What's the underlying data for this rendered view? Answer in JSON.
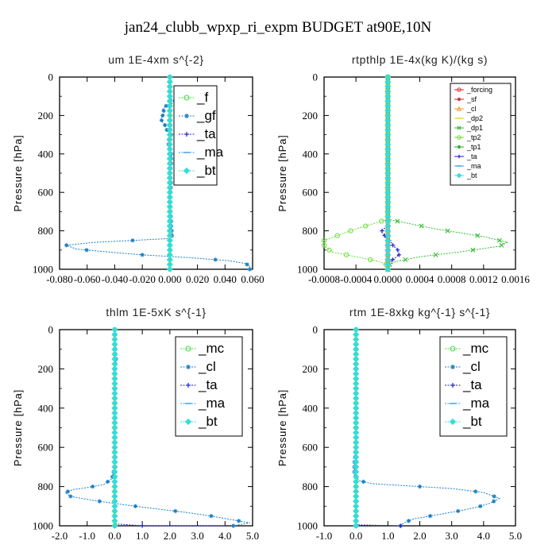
{
  "figure_title": "jan24_clubb_wpxp_ri_expm  BUDGET at90E,10N",
  "chart_data": [
    {
      "type": "line",
      "title": "um   1E-4xm s^{-2}",
      "ylabel": "Pressure [hPa]",
      "ylim": [
        1000,
        0
      ],
      "xlim": [
        -0.08,
        0.06
      ],
      "xticks": [
        "-0.080",
        "-0.060",
        "-0.040",
        "-0.020",
        "0.000",
        "0.020",
        "0.040",
        "0.060"
      ],
      "xtick_values": [
        -0.08,
        -0.06,
        -0.04,
        -0.02,
        0.0,
        0.02,
        0.04,
        0.06
      ],
      "yticks": [
        "0",
        "200",
        "400",
        "600",
        "800",
        "1000"
      ],
      "legend_style": "large",
      "series": [
        {
          "name": "_f",
          "color": "#44dd44",
          "marker": "circle",
          "points": [
            [
              0.0,
              0
            ],
            [
              0.0,
              1000
            ]
          ]
        },
        {
          "name": "_gf",
          "color": "#1a7fc4",
          "marker": "star",
          "points": [
            [
              0.0,
              0
            ],
            [
              0.0,
              95
            ],
            [
              0.0,
              110
            ],
            [
              0.005,
              130
            ],
            [
              -0.002,
              145
            ],
            [
              -0.005,
              165
            ],
            [
              -0.004,
              185
            ],
            [
              -0.006,
              210
            ],
            [
              -0.006,
              230
            ],
            [
              -0.003,
              255
            ],
            [
              -0.002,
              280
            ],
            [
              0.001,
              300
            ],
            [
              -0.001,
              330
            ],
            [
              -0.001,
              360
            ],
            [
              0.001,
              400
            ],
            [
              0.001,
              450
            ],
            [
              0.0,
              500
            ],
            [
              0.001,
              560
            ],
            [
              0.0,
              620
            ],
            [
              0.0,
              680
            ],
            [
              0.001,
              740
            ],
            [
              0.001,
              790
            ],
            [
              0.002,
              820
            ],
            [
              0.0,
              840
            ],
            [
              -0.027,
              850
            ],
            [
              -0.055,
              860
            ],
            [
              -0.075,
              875
            ],
            [
              -0.068,
              895
            ],
            [
              -0.045,
              910
            ],
            [
              -0.02,
              925
            ],
            [
              0.015,
              940
            ],
            [
              0.042,
              955
            ],
            [
              0.055,
              970
            ],
            [
              0.058,
              985
            ],
            [
              0.058,
              1000
            ]
          ]
        },
        {
          "name": "_ta",
          "color": "#2222cc",
          "marker": "plus",
          "points": [
            [
              0.0,
              0
            ],
            [
              0.0,
              1000
            ]
          ]
        },
        {
          "name": "_ma",
          "color": "#3399ee",
          "marker": "dash",
          "points": [
            [
              0.0,
              0
            ],
            [
              0.0,
              1000
            ]
          ]
        },
        {
          "name": "_bt",
          "color": "#33dddd",
          "marker": "diamond",
          "points": [
            [
              0.0,
              0
            ],
            [
              0.0,
              1000
            ]
          ]
        }
      ]
    },
    {
      "type": "line",
      "title": "rtpthlp   1E-4x(kg K)/(kg s)",
      "ylabel": "Pressure [hPa]",
      "ylim": [
        1000,
        0
      ],
      "xlim": [
        -0.0008,
        0.0016
      ],
      "xticks": [
        "-0.0008",
        "-0.0004",
        "0.0000",
        "0.0004",
        "0.0008",
        "0.0012",
        "0.0016"
      ],
      "xtick_values": [
        -0.0008,
        -0.0004,
        0.0,
        0.0004,
        0.0008,
        0.0012,
        0.0016
      ],
      "yticks": [
        "0",
        "200",
        "400",
        "600",
        "800",
        "1000"
      ],
      "legend_style": "small",
      "series": [
        {
          "name": "_forcing",
          "color": "#dd2222",
          "marker": "circle",
          "points": [
            [
              0.0,
              0
            ],
            [
              0.0,
              1000
            ]
          ]
        },
        {
          "name": "_sf",
          "color": "#cc2222",
          "marker": "star",
          "points": [
            [
              0.0,
              0
            ],
            [
              0.0,
              1000
            ]
          ]
        },
        {
          "name": "_cl",
          "color": "#ee9922",
          "marker": "tri",
          "points": [
            [
              0.0,
              0
            ],
            [
              0.0,
              1000
            ]
          ]
        },
        {
          "name": "_dp2",
          "color": "#ddcc22",
          "marker": "dash",
          "points": [
            [
              0.0,
              0
            ],
            [
              0.0,
              1000
            ]
          ]
        },
        {
          "name": "_dp1",
          "color": "#33bb33",
          "marker": "x",
          "points": [
            [
              0.0,
              0
            ],
            [
              0.0,
              740
            ],
            [
              0.0006,
              790
            ],
            [
              0.0012,
              830
            ],
            [
              0.0015,
              860
            ],
            [
              0.0014,
              880
            ],
            [
              0.0009,
              910
            ],
            [
              0.0004,
              935
            ],
            [
              0.0001,
              960
            ],
            [
              0.0,
              980
            ],
            [
              0.0,
              1000
            ]
          ]
        },
        {
          "name": "_tp2",
          "color": "#66dd33",
          "marker": "circle",
          "points": [
            [
              0.0,
              0
            ],
            [
              0.0,
              740
            ],
            [
              -0.0004,
              790
            ],
            [
              -0.0008,
              850
            ],
            [
              -0.0008,
              880
            ],
            [
              -0.0007,
              910
            ],
            [
              -0.0004,
              935
            ],
            [
              -0.0001,
              960
            ],
            [
              0.0,
              980
            ],
            [
              0.0,
              1000
            ]
          ]
        },
        {
          "name": "_tp1",
          "color": "#22aa22",
          "marker": "star",
          "points": [
            [
              0.0,
              0
            ],
            [
              0.0,
              1000
            ]
          ]
        },
        {
          "name": "_ta",
          "color": "#2222cc",
          "marker": "plus",
          "points": [
            [
              0.0,
              0
            ],
            [
              0.0,
              780
            ],
            [
              -6e-05,
              790
            ],
            [
              -8e-05,
              805
            ],
            [
              -3e-05,
              830
            ],
            [
              4e-05,
              860
            ],
            [
              7e-05,
              880
            ],
            [
              0.00012,
              895
            ],
            [
              0.00014,
              925
            ],
            [
              6e-05,
              950
            ],
            [
              0.0,
              975
            ],
            [
              0.0,
              1000
            ]
          ]
        },
        {
          "name": "_ma",
          "color": "#3399ee",
          "marker": "dash",
          "points": [
            [
              0.0,
              0
            ],
            [
              0.0,
              1000
            ]
          ]
        },
        {
          "name": "_bt",
          "color": "#33dddd",
          "marker": "diamond",
          "points": [
            [
              0.0,
              0
            ],
            [
              0.0,
              1000
            ]
          ]
        }
      ]
    },
    {
      "type": "line",
      "title": "thlm   1E-5xK s^{-1}",
      "ylabel": "Pressure [hPa]",
      "ylim": [
        1000,
        0
      ],
      "xlim": [
        -2.0,
        5.0
      ],
      "xticks": [
        "-2.0",
        "-1.0",
        "0.0",
        "1.0",
        "2.0",
        "3.0",
        "4.0",
        "5.0"
      ],
      "xtick_values": [
        -2.0,
        -1.0,
        0.0,
        1.0,
        2.0,
        3.0,
        4.0,
        5.0
      ],
      "yticks": [
        "0",
        "200",
        "400",
        "600",
        "800",
        "1000"
      ],
      "legend_style": "large",
      "series": [
        {
          "name": "_mc",
          "color": "#44dd44",
          "marker": "circle",
          "points": [
            [
              0.0,
              0
            ],
            [
              0.0,
              1000
            ]
          ]
        },
        {
          "name": "_cl",
          "color": "#1a7fc4",
          "marker": "star",
          "points": [
            [
              0.0,
              0
            ],
            [
              0.02,
              120
            ],
            [
              0.05,
              150
            ],
            [
              0.0,
              200
            ],
            [
              0.0,
              300
            ],
            [
              0.0,
              500
            ],
            [
              0.0,
              700
            ],
            [
              -0.1,
              760
            ],
            [
              -0.4,
              790
            ],
            [
              -1.0,
              805
            ],
            [
              -1.5,
              815
            ],
            [
              -1.8,
              830
            ],
            [
              -1.6,
              850
            ],
            [
              -0.8,
              870
            ],
            [
              0.2,
              890
            ],
            [
              1.3,
              910
            ],
            [
              2.5,
              930
            ],
            [
              3.5,
              950
            ],
            [
              4.3,
              970
            ],
            [
              4.9,
              985
            ],
            [
              4.3,
              1000
            ]
          ]
        },
        {
          "name": "_ta",
          "color": "#2222cc",
          "marker": "plus",
          "points": [
            [
              0.0,
              0
            ],
            [
              0.0,
              990
            ],
            [
              1.0,
              1000
            ],
            [
              4.0,
              1000
            ]
          ]
        },
        {
          "name": "_ma",
          "color": "#3399ee",
          "marker": "dash",
          "points": [
            [
              0.0,
              0
            ],
            [
              0.0,
              1000
            ]
          ]
        },
        {
          "name": "_bt",
          "color": "#33dddd",
          "marker": "diamond",
          "points": [
            [
              0.0,
              0
            ],
            [
              0.0,
              1000
            ]
          ]
        }
      ]
    },
    {
      "type": "line",
      "title": "rtm   1E-8xkg kg^{-1} s^{-1}",
      "ylabel": "Pressure [hPa]",
      "ylim": [
        1000,
        0
      ],
      "xlim": [
        -1.0,
        5.0
      ],
      "xticks": [
        "-1.0",
        "0.0",
        "1.0",
        "2.0",
        "3.0",
        "4.0",
        "5.0"
      ],
      "xtick_values": [
        -1.0,
        0.0,
        1.0,
        2.0,
        3.0,
        4.0,
        5.0
      ],
      "yticks": [
        "0",
        "200",
        "400",
        "600",
        "800",
        "1000"
      ],
      "legend_style": "large",
      "series": [
        {
          "name": "_mc",
          "color": "#44dd44",
          "marker": "circle",
          "points": [
            [
              0.0,
              0
            ],
            [
              0.0,
              1000
            ]
          ]
        },
        {
          "name": "_cl",
          "color": "#1a7fc4",
          "marker": "star",
          "points": [
            [
              0.0,
              0
            ],
            [
              0.0,
              600
            ],
            [
              -0.05,
              680
            ],
            [
              -0.05,
              740
            ],
            [
              0.1,
              770
            ],
            [
              0.5,
              785
            ],
            [
              1.5,
              795
            ],
            [
              3.0,
              810
            ],
            [
              4.0,
              830
            ],
            [
              4.5,
              860
            ],
            [
              4.2,
              885
            ],
            [
              3.8,
              905
            ],
            [
              3.2,
              925
            ],
            [
              2.5,
              945
            ],
            [
              1.8,
              965
            ],
            [
              1.5,
              985
            ],
            [
              1.4,
              1000
            ]
          ]
        },
        {
          "name": "_ta",
          "color": "#2222cc",
          "marker": "plus",
          "points": [
            [
              0.0,
              0
            ],
            [
              0.0,
              995
            ],
            [
              1.4,
              1000
            ]
          ]
        },
        {
          "name": "_ma",
          "color": "#3399ee",
          "marker": "dash",
          "points": [
            [
              0.0,
              0
            ],
            [
              0.0,
              1000
            ]
          ]
        },
        {
          "name": "_bt",
          "color": "#33dddd",
          "marker": "diamond",
          "points": [
            [
              0.0,
              0
            ],
            [
              0.0,
              1000
            ]
          ]
        }
      ]
    }
  ]
}
